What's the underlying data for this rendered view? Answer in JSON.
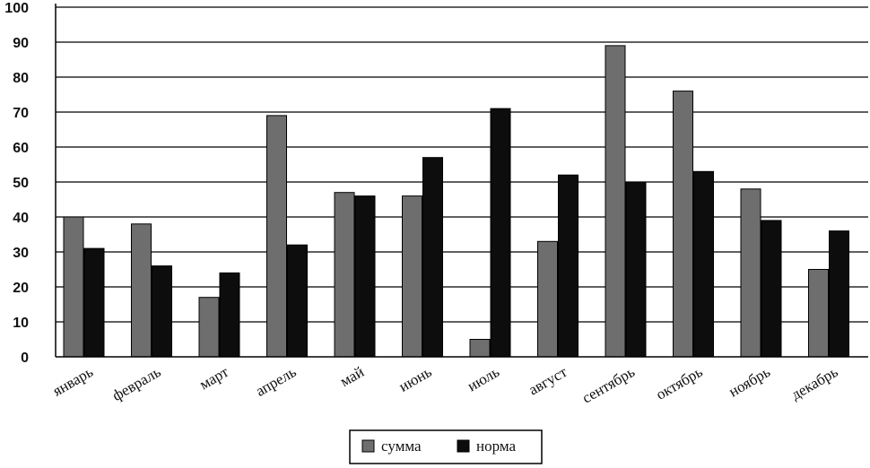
{
  "chart_data": {
    "type": "bar",
    "categories": [
      "январь",
      "февраль",
      "март",
      "апрель",
      "май",
      "июнь",
      "июль",
      "август",
      "сентябрь",
      "октябрь",
      "ноябрь",
      "декабрь"
    ],
    "series": [
      {
        "name": "сумма",
        "values": [
          40,
          38,
          17,
          69,
          47,
          46,
          5,
          33,
          89,
          76,
          48,
          25
        ],
        "color": "#6e6e6e"
      },
      {
        "name": "норма",
        "values": [
          31,
          26,
          24,
          32,
          46,
          57,
          71,
          52,
          50,
          53,
          39,
          36
        ],
        "color": "#0d0d0d"
      }
    ],
    "ylim": [
      0,
      100
    ],
    "yticks": [
      "0",
      "10",
      "20",
      "30",
      "40",
      "50",
      "60",
      "70",
      "80",
      "90",
      "100"
    ],
    "grid": true,
    "legend_position": "bottom-center"
  }
}
